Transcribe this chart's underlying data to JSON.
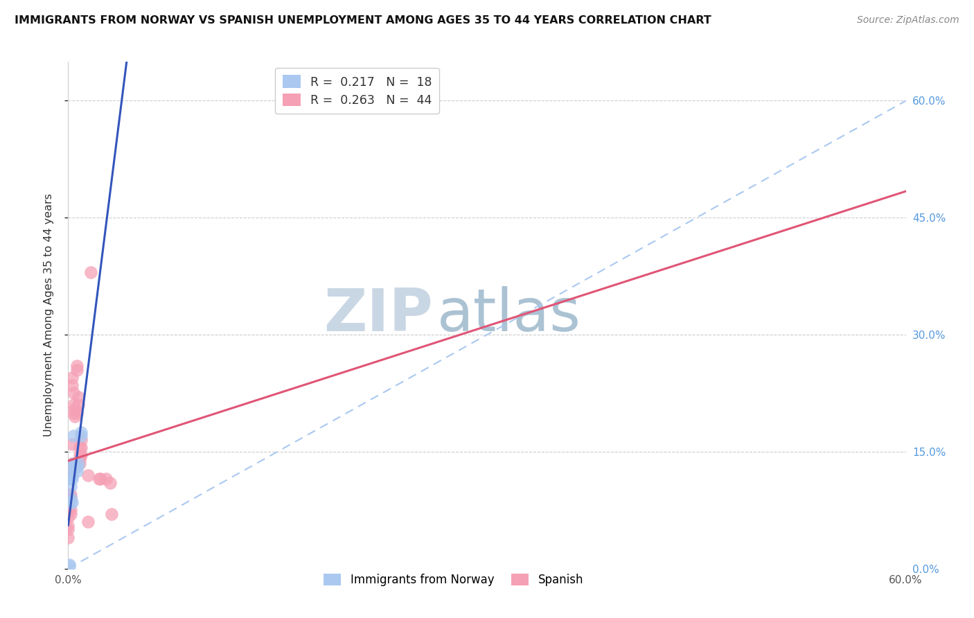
{
  "title": "IMMIGRANTS FROM NORWAY VS SPANISH UNEMPLOYMENT AMONG AGES 35 TO 44 YEARS CORRELATION CHART",
  "source": "Source: ZipAtlas.com",
  "ylabel": "Unemployment Among Ages 35 to 44 years",
  "xlim": [
    0.0,
    0.6
  ],
  "ylim": [
    0.0,
    0.65
  ],
  "xticks": [
    0.0,
    0.1,
    0.2,
    0.3,
    0.4,
    0.5,
    0.6
  ],
  "yticks": [
    0.0,
    0.15,
    0.3,
    0.45,
    0.6
  ],
  "legend_r_norway": "0.217",
  "legend_n_norway": "18",
  "legend_r_spanish": "0.263",
  "legend_n_spanish": "44",
  "norway_color": "#aac8f0",
  "spanish_color": "#f5a0b5",
  "norway_line_color": "#3355bb",
  "spanish_line_color": "#e05575",
  "dashed_line_color": "#aac8f0",
  "background_color": "#ffffff",
  "grid_color": "#dddddd",
  "watermark_zip": "ZIP",
  "watermark_atlas": "atlas",
  "watermark_color": "#c8d8e8",
  "norway_x": [
    0.001,
    0.001,
    0.002,
    0.002,
    0.002,
    0.002,
    0.003,
    0.003,
    0.003,
    0.003,
    0.004,
    0.004,
    0.005,
    0.006,
    0.006,
    0.007,
    0.009,
    0.009
  ],
  "norway_y": [
    0.005,
    0.003,
    0.09,
    0.085,
    0.115,
    0.105,
    0.085,
    0.13,
    0.12,
    0.115,
    0.135,
    0.17,
    0.13,
    0.13,
    0.125,
    0.135,
    0.175,
    0.17
  ],
  "spanish_x": [
    0.0,
    0.0,
    0.0,
    0.0,
    0.0,
    0.0,
    0.0,
    0.001,
    0.001,
    0.001,
    0.002,
    0.002,
    0.002,
    0.002,
    0.003,
    0.003,
    0.003,
    0.003,
    0.003,
    0.004,
    0.004,
    0.004,
    0.005,
    0.005,
    0.006,
    0.006,
    0.006,
    0.007,
    0.007,
    0.008,
    0.008,
    0.008,
    0.008,
    0.009,
    0.009,
    0.009,
    0.014,
    0.014,
    0.016,
    0.022,
    0.023,
    0.027,
    0.03,
    0.031
  ],
  "spanish_y": [
    0.09,
    0.085,
    0.075,
    0.065,
    0.055,
    0.05,
    0.04,
    0.095,
    0.09,
    0.08,
    0.095,
    0.09,
    0.075,
    0.07,
    0.135,
    0.125,
    0.245,
    0.235,
    0.16,
    0.225,
    0.21,
    0.2,
    0.205,
    0.195,
    0.26,
    0.255,
    0.2,
    0.22,
    0.21,
    0.155,
    0.145,
    0.14,
    0.135,
    0.155,
    0.145,
    0.165,
    0.12,
    0.06,
    0.38,
    0.115,
    0.115,
    0.115,
    0.11,
    0.07
  ]
}
